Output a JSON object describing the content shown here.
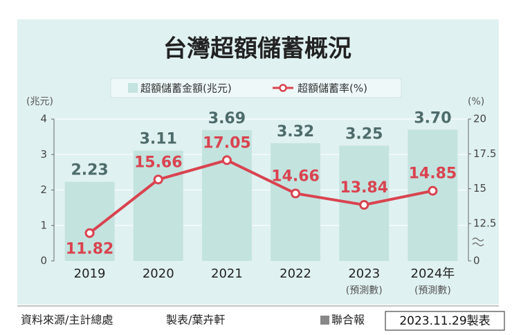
{
  "chart_data": {
    "type": "bar",
    "title": "台灣超額儲蓄概況",
    "categories": [
      "2019",
      "2020",
      "2021",
      "2022",
      "2023",
      "2024年"
    ],
    "category_notes": [
      null,
      null,
      null,
      null,
      "(預測數)",
      "(預測數)"
    ],
    "ylabel": "(兆元)",
    "y2label": "(%)",
    "ylim": [
      0,
      4
    ],
    "yticks": [
      0,
      1,
      2,
      3,
      4
    ],
    "y2lim": [
      0,
      20
    ],
    "y2ticks": [
      0,
      12.5,
      15,
      17.5,
      20
    ],
    "y2_break": [
      0,
      12.5
    ],
    "grid": true,
    "series": [
      {
        "name": "超額儲蓄金額(兆元)",
        "type": "bar",
        "color": "#c3e3df",
        "label_color": "#4d6b6a",
        "values": [
          2.23,
          3.11,
          3.69,
          3.32,
          3.25,
          3.7
        ],
        "value_labels": [
          "2.23",
          "3.11",
          "3.69",
          "3.32",
          "3.25",
          "3.70"
        ]
      },
      {
        "name": "超額儲蓄率(%)",
        "type": "line",
        "axis": "y2",
        "color": "#d9434f",
        "values": [
          11.82,
          15.66,
          17.05,
          14.66,
          13.84,
          14.85
        ]
      }
    ]
  },
  "footer": {
    "source": "資料來源/主計總處",
    "maker": "製表/葉卉軒",
    "publisher": "聯合報",
    "date_stamp": "2023.11.29製表"
  }
}
